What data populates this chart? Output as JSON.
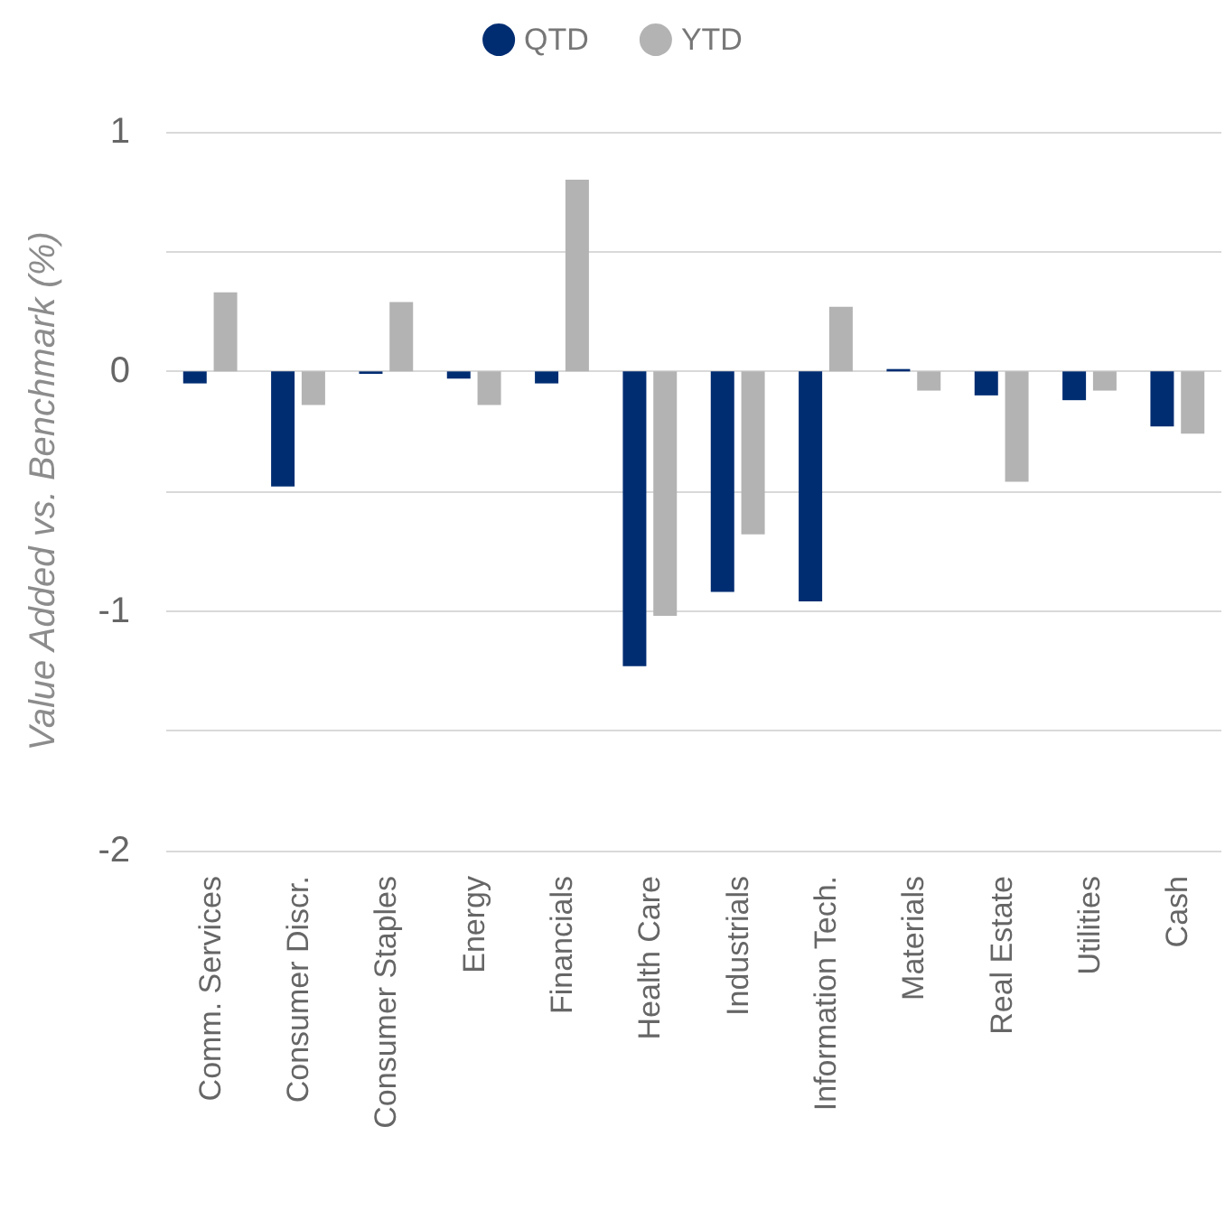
{
  "chart_data": {
    "type": "bar",
    "ylabel": "Value Added vs. Benchmark (%)",
    "categories": [
      "Comm. Services",
      "Consumer Discr.",
      "Consumer Staples",
      "Energy",
      "Financials",
      "Health Care",
      "Industrials",
      "Information Tech.",
      "Materials",
      "Real Estate",
      "Utilities",
      "Cash"
    ],
    "series": [
      {
        "name": "QTD",
        "color": "#002d72",
        "values": [
          -0.05,
          -0.48,
          -0.01,
          -0.03,
          -0.05,
          -1.23,
          -0.92,
          -0.96,
          0.01,
          -0.1,
          -0.12,
          -0.23
        ]
      },
      {
        "name": "YTD",
        "color": "#b3b3b3",
        "values": [
          0.33,
          -0.14,
          0.29,
          -0.14,
          0.8,
          -1.02,
          -0.68,
          0.27,
          -0.08,
          -0.46,
          -0.08,
          -0.26
        ]
      }
    ],
    "ylim": [
      -2,
      1
    ],
    "yticks": [
      -2,
      {
        "value": -1.5,
        "label": null
      },
      -1,
      {
        "value": -0.5,
        "label": null
      },
      0,
      {
        "value": 0.5,
        "label": null
      },
      1
    ],
    "grid": "y",
    "legend": "top",
    "marker": "circle"
  }
}
